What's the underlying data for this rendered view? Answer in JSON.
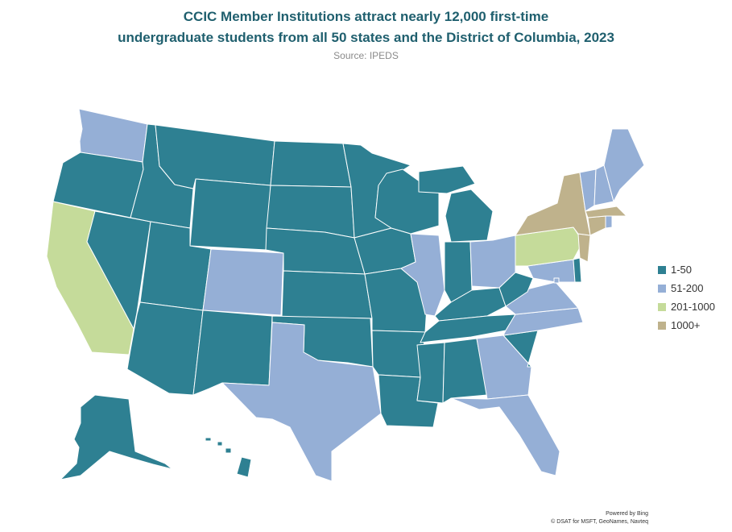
{
  "title_line1": "CCIC Member Institutions  attract  nearly  12,000 first-time",
  "title_line2": "undergraduate  students  from  all 50 states and the District  of Columbia,  2023",
  "subtitle": "Source: IPEDS",
  "legend": [
    {
      "label": "1-50",
      "color": "#2e8092"
    },
    {
      "label": "51-200",
      "color": "#95afd6"
    },
    {
      "label": "201-1000",
      "color": "#c5db9a"
    },
    {
      "label": "1000+",
      "color": "#bfb28c"
    }
  ],
  "categories": {
    "AK": "1-50",
    "AL": "1-50",
    "AR": "1-50",
    "AZ": "1-50",
    "CA": "201-1000",
    "CO": "51-200",
    "CT": "1000+",
    "DC": "51-200",
    "DE": "1-50",
    "FL": "51-200",
    "GA": "51-200",
    "HI": "1-50",
    "IA": "1-50",
    "ID": "1-50",
    "IL": "51-200",
    "IN": "1-50",
    "KS": "1-50",
    "KY": "1-50",
    "LA": "1-50",
    "MA": "1000+",
    "MD": "51-200",
    "ME": "51-200",
    "MI": "1-50",
    "MN": "1-50",
    "MO": "1-50",
    "MS": "1-50",
    "MT": "1-50",
    "NC": "51-200",
    "ND": "1-50",
    "NE": "1-50",
    "NH": "51-200",
    "NJ": "1000+",
    "NM": "1-50",
    "NV": "1-50",
    "NY": "1000+",
    "OH": "51-200",
    "OK": "1-50",
    "OR": "1-50",
    "PA": "201-1000",
    "RI": "51-200",
    "SC": "1-50",
    "SD": "1-50",
    "TN": "1-50",
    "TX": "51-200",
    "UT": "1-50",
    "VA": "51-200",
    "VT": "51-200",
    "WA": "51-200",
    "WI": "1-50",
    "WV": "1-50",
    "WY": "1-50"
  },
  "attribution_line1": "Powered by Bing",
  "attribution_line2": "© DSAT for MSFT, GeoNames, Navteq"
}
